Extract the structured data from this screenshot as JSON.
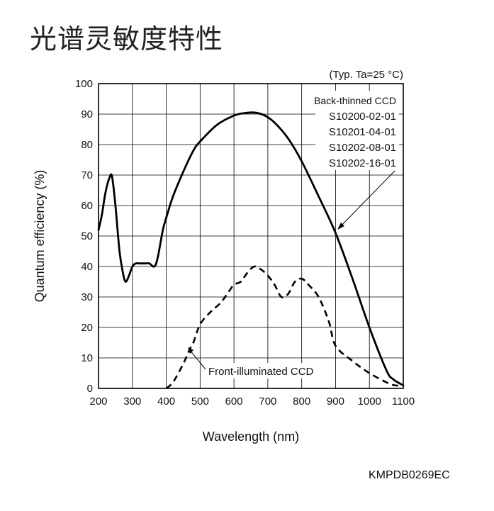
{
  "page_title": "光谱灵敏度特性",
  "figure_code": "KMPDB0269EC",
  "chart_data": {
    "type": "line",
    "condition_note": "(Typ. Ta=25 °C)",
    "xlabel": "Wavelength (nm)",
    "ylabel": "Quantum efficiency (%)",
    "xlim": [
      200,
      1100
    ],
    "ylim": [
      0,
      100
    ],
    "x_ticks": [
      200,
      300,
      400,
      500,
      600,
      700,
      800,
      900,
      1000,
      1100
    ],
    "y_ticks": [
      0,
      10,
      20,
      30,
      40,
      50,
      60,
      70,
      80,
      90,
      100
    ],
    "grid": true,
    "series": [
      {
        "name": "Back-thinned CCD",
        "models": [
          "S10200-02-01",
          "S10201-04-01",
          "S10202-08-01",
          "S10202-16-01"
        ],
        "style": "solid",
        "color": "#000000",
        "x": [
          200,
          210,
          220,
          232,
          240,
          250,
          262,
          272,
          280,
          290,
          300,
          310,
          320,
          340,
          350,
          365,
          375,
          390,
          400,
          420,
          450,
          480,
          500,
          550,
          600,
          630,
          660,
          690,
          720,
          760,
          800,
          850,
          900,
          950,
          1000,
          1050,
          1070,
          1100
        ],
        "values": [
          52,
          57,
          64,
          69,
          69.5,
          60,
          45,
          38,
          35,
          37,
          40,
          41,
          41,
          41,
          41,
          40,
          43,
          52,
          56,
          63,
          71,
          78,
          81,
          86.5,
          89.5,
          90.3,
          90.5,
          89.6,
          87.2,
          82,
          74.5,
          63,
          51,
          36,
          20,
          6,
          3,
          1
        ]
      },
      {
        "name": "Front-illuminated CCD",
        "style": "dashed",
        "color": "#000000",
        "x": [
          400,
          420,
          450,
          470,
          480,
          500,
          530,
          560,
          580,
          600,
          620,
          640,
          660,
          680,
          700,
          720,
          740,
          760,
          780,
          800,
          820,
          850,
          880,
          900,
          950,
          1000,
          1050,
          1075,
          1100
        ],
        "values": [
          0,
          2,
          8,
          13,
          15,
          21,
          25,
          28,
          31,
          34,
          35,
          38,
          40,
          39,
          37,
          34,
          30,
          31,
          35,
          36,
          34,
          30,
          22,
          14,
          9,
          5,
          2,
          1,
          1
        ]
      }
    ]
  }
}
